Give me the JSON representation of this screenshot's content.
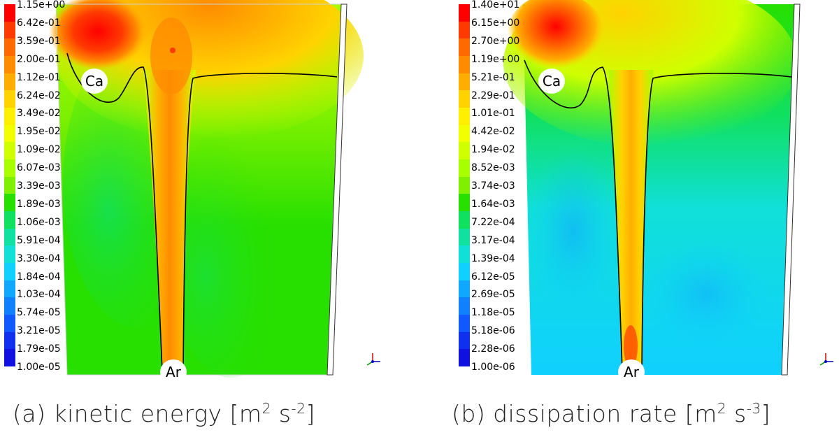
{
  "panels": [
    {
      "id": "a",
      "colorbar_ticks": [
        "1.15e+00",
        "6.42e-01",
        "3.59e-01",
        "2.00e-01",
        "1.12e-01",
        "6.24e-02",
        "3.49e-02",
        "1.95e-02",
        "1.09e-02",
        "6.07e-03",
        "3.39e-03",
        "1.89e-03",
        "1.06e-03",
        "5.91e-04",
        "3.30e-04",
        "1.84e-04",
        "1.03e-04",
        "5.74e-05",
        "3.21e-05",
        "1.79e-05",
        "1.00e-05"
      ],
      "marker_top": "Ca",
      "marker_bottom": "Ar",
      "caption_prefix": "(a) kinetic energy [m",
      "caption_exp1": "2",
      "caption_mid": " s",
      "caption_exp2": "-2",
      "caption_suffix": "]"
    },
    {
      "id": "b",
      "colorbar_ticks": [
        "1.40e+01",
        "6.15e+00",
        "2.70e+00",
        "1.19e+00",
        "5.21e-01",
        "2.29e-01",
        "1.01e-01",
        "4.42e-02",
        "1.94e-02",
        "8.52e-03",
        "3.74e-03",
        "1.64e-03",
        "7.22e-04",
        "3.17e-04",
        "1.39e-04",
        "6.12e-05",
        "2.69e-05",
        "1.18e-05",
        "5.18e-06",
        "2.28e-06",
        "1.00e-06"
      ],
      "marker_top": "Ca",
      "marker_bottom": "Ar",
      "caption_prefix": "(b) dissipation rate [m",
      "caption_exp1": "2",
      "caption_mid": " s",
      "caption_exp2": "-3",
      "caption_suffix": "]"
    }
  ],
  "colormap": [
    "#ff0000",
    "#ff3a00",
    "#ff6a00",
    "#ff8c00",
    "#ffae00",
    "#ffd200",
    "#ffef00",
    "#f2ff00",
    "#cfff00",
    "#a8ff00",
    "#7ef000",
    "#27e000",
    "#10e060",
    "#10e0a0",
    "#10e0d8",
    "#10d0ff",
    "#10a8ff",
    "#1080ff",
    "#1058ff",
    "#1030f0",
    "#1010e0"
  ]
}
